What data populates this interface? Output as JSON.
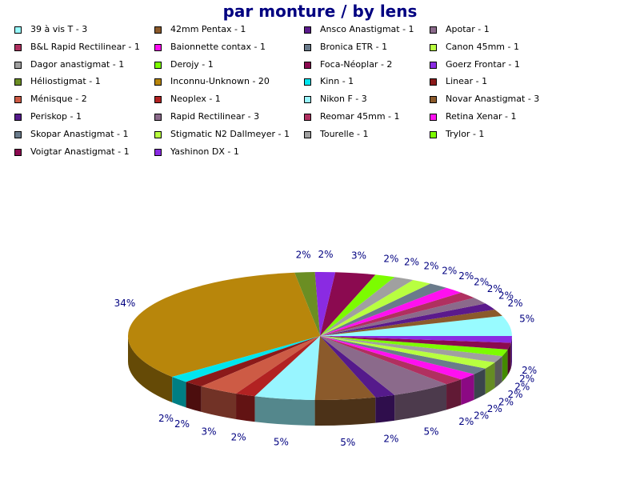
{
  "chart_data": {
    "type": "pie",
    "title": "par monture / by lens",
    "slices": [
      {
        "label": "39 à vis T - 3",
        "value": 3,
        "color": "#98FBFF"
      },
      {
        "label": "42mm Pentax - 1",
        "value": 1,
        "color": "#8B5A2B"
      },
      {
        "label": "Ansco Anastigmat - 1",
        "value": 1,
        "color": "#5B1A8C"
      },
      {
        "label": "Apotar - 1",
        "value": 1,
        "color": "#8B6A8B"
      },
      {
        "label": "B&L Rapid Rectilinear - 1",
        "value": 1,
        "color": "#B03060"
      },
      {
        "label": "Baionnette contax - 1",
        "value": 1,
        "color": "#FF10F0"
      },
      {
        "label": "Bronica ETR - 1",
        "value": 1,
        "color": "#6A7B8B"
      },
      {
        "label": "Canon 45mm - 1",
        "value": 1,
        "color": "#B8FF40"
      },
      {
        "label": "Dagor anastigmat - 1",
        "value": 1,
        "color": "#A0A0A0"
      },
      {
        "label": "Derojy - 1",
        "value": 1,
        "color": "#7CFC00"
      },
      {
        "label": "Foca-Néoplar - 2",
        "value": 2,
        "color": "#8B0A50"
      },
      {
        "label": "Goerz Frontar - 1",
        "value": 1,
        "color": "#8A2BE2"
      },
      {
        "label": "Héliostigmat - 1",
        "value": 1,
        "color": "#6B8E23"
      },
      {
        "label": "Inconnu-Unknown - 20",
        "value": 20,
        "color": "#B8860B"
      },
      {
        "label": "Kinn - 1",
        "value": 1,
        "color": "#00E5EE"
      },
      {
        "label": "Linear - 1",
        "value": 1,
        "color": "#8B1A1A"
      },
      {
        "label": "Ménisque - 2",
        "value": 2,
        "color": "#CD5B45"
      },
      {
        "label": "Neoplex - 1",
        "value": 1,
        "color": "#B22222"
      },
      {
        "label": "Nikon F - 3",
        "value": 3,
        "color": "#98F5FF"
      },
      {
        "label": "Novar Anastigmat - 3",
        "value": 3,
        "color": "#8B5A2B"
      },
      {
        "label": "Periskop - 1",
        "value": 1,
        "color": "#551A8B"
      },
      {
        "label": "Rapid Rectilinear - 3",
        "value": 3,
        "color": "#8B6A8B"
      },
      {
        "label": "Reomar 45mm - 1",
        "value": 1,
        "color": "#B03060"
      },
      {
        "label": "Retina Xenar - 1",
        "value": 1,
        "color": "#FF10F0"
      },
      {
        "label": "Skopar Anastigmat - 1",
        "value": 1,
        "color": "#6A7B8B"
      },
      {
        "label": "Stigmatic N2 Dallmeyer - 1",
        "value": 1,
        "color": "#B8FF40"
      },
      {
        "label": "Tourelle - 1",
        "value": 1,
        "color": "#A0A0A0"
      },
      {
        "label": "Trylor - 1",
        "value": 1,
        "color": "#7CFC00"
      },
      {
        "label": "Voigtar Anastigmat - 1",
        "value": 1,
        "color": "#8B0A50"
      },
      {
        "label": "Yashinon DX - 1",
        "value": 1,
        "color": "#8A2BE2"
      }
    ],
    "percent_labels": [
      "2%",
      "2%",
      "3%",
      "2%",
      "2%",
      "2%",
      "2%",
      "2%",
      "2%",
      "2%",
      "2%",
      "5%",
      "2%",
      "2%",
      "2%",
      "2%",
      "2%",
      "2%",
      "2%",
      "5%",
      "2%",
      "5%",
      "2%",
      "5%",
      "2%",
      "3%",
      "2%",
      "2%",
      "34%",
      "2%"
    ],
    "legend_placement": "top",
    "legend_columns": 4
  }
}
